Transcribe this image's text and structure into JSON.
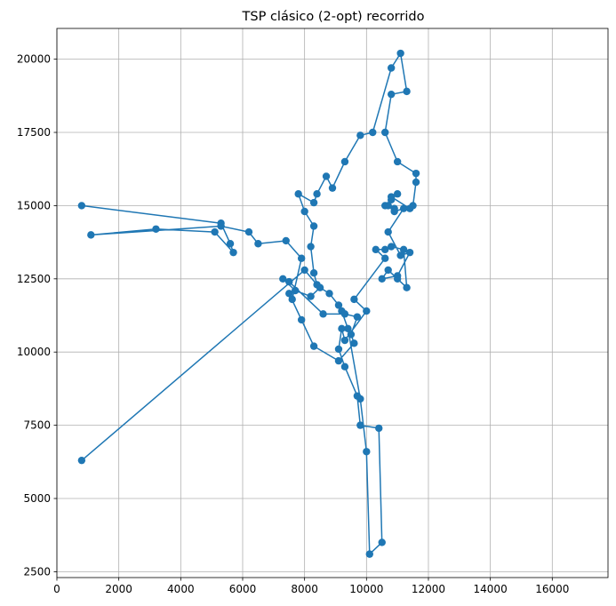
{
  "chart_data": {
    "type": "line",
    "title": "TSP clásico (2-opt) recorrido",
    "xlabel": "",
    "ylabel": "",
    "xlim": [
      0,
      17800
    ],
    "ylim": [
      2300,
      21050
    ],
    "x_ticks": [
      0,
      2000,
      4000,
      6000,
      8000,
      10000,
      12000,
      14000,
      16000
    ],
    "y_ticks": [
      2500,
      5000,
      7500,
      10000,
      12500,
      15000,
      17500,
      20000
    ],
    "grid": true,
    "legend": "none",
    "series_color": "#1f77b4",
    "series": [
      {
        "marker": "circle",
        "x": [
          800,
          8000,
          8400,
          8300,
          8200,
          8300,
          8000,
          7800,
          8300,
          8400,
          8700,
          8900,
          9300,
          9800,
          10200,
          10800,
          11100,
          11300,
          10800,
          10600,
          11000,
          11600,
          11600,
          11500,
          11400,
          10800,
          11000,
          10800,
          10600,
          10900,
          10700,
          10900,
          11200,
          10700,
          11100,
          11400,
          11000,
          10500,
          10700,
          11000,
          11300,
          11200,
          10800,
          10600,
          10300,
          10600,
          9600,
          10000,
          9300,
          9200,
          9100,
          9300,
          9700,
          9800,
          10400,
          10500,
          10100,
          10000,
          9800,
          9400,
          9200,
          9100,
          8800,
          8500,
          8200,
          7700,
          7300,
          7500,
          8600,
          9300,
          9700,
          9500,
          9600,
          9100,
          8300,
          7900,
          7500,
          7600,
          7900,
          7400,
          6500,
          6200,
          5300,
          1100,
          3200,
          5100,
          5700,
          5600,
          5300,
          800
        ],
        "y": [
          6300,
          12800,
          12300,
          12700,
          13600,
          14300,
          14800,
          15400,
          15100,
          15400,
          16000,
          15600,
          16500,
          17400,
          17500,
          19700,
          20200,
          18900,
          18800,
          17500,
          16500,
          16100,
          15800,
          15000,
          14900,
          15300,
          15400,
          15200,
          15000,
          14900,
          15000,
          14800,
          14900,
          14100,
          13300,
          13400,
          12600,
          12500,
          12800,
          12500,
          12200,
          13500,
          13600,
          13500,
          13500,
          13200,
          11800,
          11400,
          10400,
          10800,
          10100,
          9500,
          8500,
          7500,
          7400,
          3500,
          3100,
          6600,
          8400,
          10800,
          11400,
          11600,
          12000,
          12200,
          11900,
          12100,
          12500,
          12400,
          11300,
          11300,
          11200,
          10600,
          10300,
          9700,
          10200,
          11100,
          12000,
          11800,
          13200,
          13800,
          13700,
          14100,
          14300,
          14000,
          14200,
          14100,
          13400,
          13700,
          14400,
          15000
        ]
      }
    ]
  }
}
